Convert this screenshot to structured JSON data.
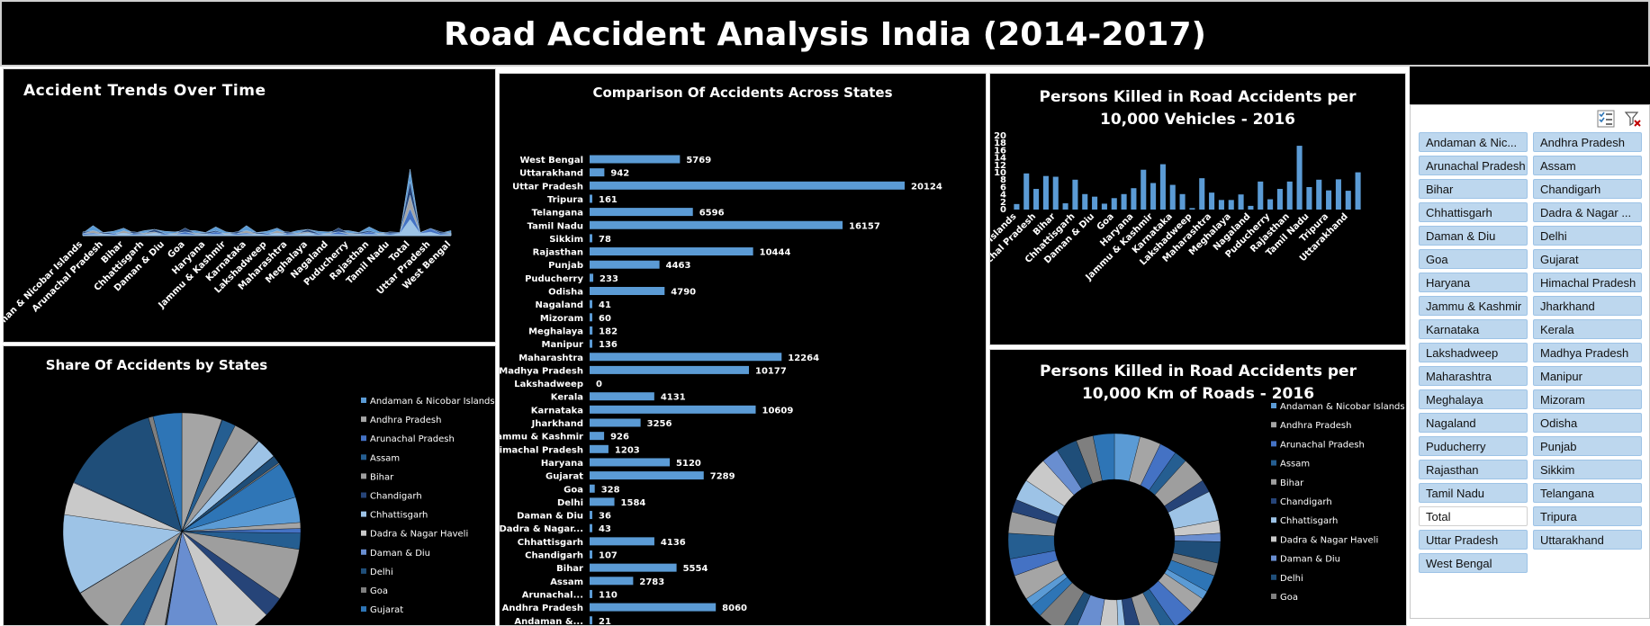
{
  "dashboard": {
    "title": "Road Accident Analysis India (2014-2017)"
  },
  "colors": {
    "background": "#000000",
    "bar": "#5b9bd5",
    "text": "#ffffff",
    "slicer_item": "#bdd7ee"
  },
  "states": [
    "Andaman & Nicobar Islands",
    "Andhra Pradesh",
    "Arunachal Pradesh",
    "Assam",
    "Bihar",
    "Chandigarh",
    "Chhattisgarh",
    "Dadra & Nagar Haveli",
    "Daman & Diu",
    "Delhi",
    "Goa",
    "Gujarat",
    "Haryana",
    "Himachal Pradesh",
    "Jammu & Kashmir",
    "Jharkhand",
    "Karnataka",
    "Kerala",
    "Lakshadweep",
    "Madhya Pradesh",
    "Maharashtra",
    "Manipur",
    "Meghalaya",
    "Mizoram",
    "Nagaland",
    "Odisha",
    "Puducherry",
    "Punjab",
    "Rajasthan",
    "Sikkim",
    "Tamil Nadu",
    "Telangana",
    "Tripura",
    "Uttar Pradesh",
    "Uttarakhand",
    "West Bengal"
  ],
  "chart_data": [
    {
      "id": "trend",
      "type": "area",
      "title": "Accident Trends Over Time",
      "categories": [
        "Andaman & Nicobar Islands",
        "Arunachal Pradesh",
        "Bihar",
        "Chhattisgarh",
        "Daman & Diu",
        "Goa",
        "Haryana",
        "Jammu & Kashmir",
        "Karnataka",
        "Lakshadweep",
        "Maharashtra",
        "Meghalaya",
        "Nagaland",
        "Puducherry",
        "Rajasthan",
        "Tamil Nadu",
        "Total",
        "Uttar Pradesh",
        "West Bengal"
      ],
      "series_colors": [
        "#5b9bd5",
        "#264478",
        "#a5a5a5",
        "#4472c4",
        "#9dc3e6"
      ],
      "peak_index": 16,
      "grid": false
    },
    {
      "id": "comparison",
      "type": "bar",
      "orientation": "horizontal",
      "title": "Comparison Of Accidents Across States",
      "categories": [
        "West Bengal",
        "Uttarakhand",
        "Uttar Pradesh",
        "Tripura",
        "Telangana",
        "Tamil Nadu",
        "Sikkim",
        "Rajasthan",
        "Punjab",
        "Puducherry",
        "Odisha",
        "Nagaland",
        "Mizoram",
        "Meghalaya",
        "Manipur",
        "Maharashtra",
        "Madhya Pradesh",
        "Lakshadweep",
        "Kerala",
        "Karnataka",
        "Jharkhand",
        "Jammu & Kashmir",
        "Himachal Pradesh",
        "Haryana",
        "Gujarat",
        "Goa",
        "Delhi",
        "Daman & Diu",
        "Dadra & Nagar...",
        "Chhattisgarh",
        "Chandigarh",
        "Bihar",
        "Assam",
        "Arunachal...",
        "Andhra Pradesh",
        "Andaman &..."
      ],
      "values": [
        5769,
        942,
        20124,
        161,
        6596,
        16157,
        78,
        10444,
        4463,
        233,
        4790,
        41,
        60,
        182,
        136,
        12264,
        10177,
        0,
        4131,
        10609,
        3256,
        926,
        1203,
        5120,
        7289,
        328,
        1584,
        36,
        43,
        4136,
        107,
        5554,
        2783,
        110,
        8060,
        21
      ],
      "grid": false
    },
    {
      "id": "killed_vehicles",
      "type": "bar",
      "title": "Persons Killed in Road Accidents per 10,000 Vehicles - 2016",
      "title_lines": [
        "Persons Killed in Road Accidents per",
        "10,000 Vehicles - 2016"
      ],
      "categories": [
        "Andaman & Nicobar Islands",
        "Andhra Pradesh",
        "Arunachal Pradesh",
        "Assam",
        "Bihar",
        "Chandigarh",
        "Chhattisgarh",
        "Dadra & Nagar Haveli",
        "Daman & Diu",
        "Delhi",
        "Goa",
        "Gujarat",
        "Haryana",
        "Himachal Pradesh",
        "Jammu & Kashmir",
        "Jharkhand",
        "Karnataka",
        "Kerala",
        "Lakshadweep",
        "Madhya Pradesh",
        "Maharashtra",
        "Manipur",
        "Meghalaya",
        "Mizoram",
        "Nagaland",
        "Odisha",
        "Puducherry",
        "Punjab",
        "Rajasthan",
        "Sikkim",
        "Tamil Nadu",
        "Telangana",
        "Tripura",
        "Uttar Pradesh",
        "Uttarakhand",
        "West Bengal"
      ],
      "x_tick_labels": [
        "Andaman & Nicobar Islands",
        "Arunachal Pradesh",
        "Bihar",
        "Chhattisgarh",
        "Daman & Diu",
        "Goa",
        "Haryana",
        "Jammu & Kashmir",
        "Karnataka",
        "Lakshadweep",
        "Maharashtra",
        "Meghalaya",
        "Nagaland",
        "Puducherry",
        "Rajasthan",
        "Tamil Nadu",
        "Tripura",
        "Uttarakhand"
      ],
      "values": [
        1.5,
        9.8,
        5.6,
        9.1,
        8.9,
        1.7,
        8.1,
        4.2,
        3.5,
        1.6,
        3.1,
        4.2,
        5.8,
        10.8,
        7.2,
        12.3,
        6.7,
        4.2,
        0.4,
        8.5,
        4.6,
        2.6,
        2.6,
        4.1,
        1.0,
        7.6,
        2.8,
        5.6,
        7.6,
        17.3,
        6.1,
        8.1,
        5.2,
        8.2,
        5.1,
        10.1
      ],
      "ylim": [
        0,
        20
      ],
      "yticks": [
        0,
        2,
        4,
        6,
        8,
        10,
        12,
        14,
        16,
        18,
        20
      ],
      "grid": false
    },
    {
      "id": "share",
      "type": "pie",
      "title": "Share Of Accidents by States",
      "legend_position": "right",
      "labels": [
        "Andaman & Nicobar Islands",
        "Andhra Pradesh",
        "Arunachal Pradesh",
        "Assam",
        "Bihar",
        "Chandigarh",
        "Chhattisgarh",
        "Dadra & Nagar Haveli",
        "Daman & Diu",
        "Delhi",
        "Goa",
        "Gujarat",
        "Haryana",
        "Himachal Pradesh",
        "Jammu & Kashmir",
        "Jharkhand",
        "Karnataka",
        "Kerala",
        "Lakshadweep",
        "Madhya Pradesh",
        "Maharashtra",
        "Manipur",
        "Meghalaya",
        "Mizoram",
        "Nagaland",
        "Odisha",
        "Puducherry",
        "Punjab",
        "Rajasthan",
        "Sikkim",
        "Tamil Nadu",
        "Telangana",
        "Tripura",
        "Uttar Pradesh",
        "Uttarakhand",
        "West Bengal"
      ],
      "legend_visible": [
        "Andaman & Nicobar Islands",
        "Andhra Pradesh",
        "Arunachal Pradesh",
        "Assam",
        "Bihar",
        "Chandigarh",
        "Chhattisgarh",
        "Dadra & Nagar Haveli",
        "Daman & Diu",
        "Delhi",
        "Goa",
        "Gujarat"
      ],
      "values": [
        21,
        8060,
        110,
        2783,
        5554,
        107,
        4136,
        43,
        36,
        1584,
        328,
        7289,
        5120,
        1203,
        926,
        3256,
        10609,
        4131,
        0,
        10177,
        12264,
        136,
        182,
        60,
        41,
        4790,
        233,
        4463,
        10444,
        78,
        16157,
        6596,
        161,
        20124,
        942,
        5769
      ],
      "colors": [
        "#5b9bd5",
        "#a5a5a5",
        "#4472c4",
        "#255e91",
        "#9e9e9e",
        "#264478",
        "#9dc3e6",
        "#c9c9c9",
        "#698ed0",
        "#1f4e79",
        "#7f7f7f",
        "#2e75b6"
      ]
    },
    {
      "id": "killed_roads",
      "type": "pie",
      "subtype": "doughnut",
      "title": "Persons Killed in Road Accidents per 10,000 Km of Roads - 2016",
      "title_lines": [
        "Persons Killed in Road Accidents per",
        "10,000 Km of Roads - 2016"
      ],
      "legend_position": "right",
      "labels": [
        "Andaman & Nicobar Islands",
        "Andhra Pradesh",
        "Arunachal Pradesh",
        "Assam",
        "Bihar",
        "Chandigarh",
        "Chhattisgarh",
        "Dadra & Nagar Haveli",
        "Daman & Diu",
        "Delhi",
        "Goa",
        "Gujarat",
        "Haryana",
        "Himachal Pradesh",
        "Jammu & Kashmir",
        "Jharkhand",
        "Karnataka",
        "Kerala",
        "Lakshadweep",
        "Madhya Pradesh",
        "Maharashtra",
        "Manipur",
        "Meghalaya",
        "Mizoram",
        "Nagaland",
        "Odisha",
        "Puducherry",
        "Punjab",
        "Rajasthan",
        "Sikkim",
        "Tamil Nadu",
        "Telangana",
        "Tripura",
        "Uttar Pradesh",
        "Uttarakhand",
        "West Bengal"
      ],
      "legend_visible": [
        "Andaman & Nicobar Islands",
        "Andhra Pradesh",
        "Arunachal Pradesh",
        "Assam",
        "Bihar",
        "Chandigarh",
        "Chhattisgarh",
        "Dadra & Nagar Haveli",
        "Daman & Diu",
        "Delhi",
        "Goa"
      ],
      "values": [
        6,
        5,
        4,
        3,
        6,
        3,
        7,
        3,
        2,
        5,
        3,
        4,
        2,
        4,
        5,
        3,
        5,
        4,
        2,
        5,
        6,
        3,
        6,
        3,
        2,
        6,
        4,
        6,
        5,
        3,
        5,
        6,
        4,
        5,
        4,
        5
      ],
      "colors": [
        "#5b9bd5",
        "#a5a5a5",
        "#4472c4",
        "#255e91",
        "#9e9e9e",
        "#264478",
        "#9dc3e6",
        "#c9c9c9",
        "#698ed0",
        "#1f4e79",
        "#7f7f7f",
        "#2e75b6"
      ]
    }
  ],
  "slicer": {
    "items": [
      "Andaman & Nic...",
      "Andhra Pradesh",
      "Arunachal Pradesh",
      "Assam",
      "Bihar",
      "Chandigarh",
      "Chhattisgarh",
      "Dadra & Nagar ...",
      "Daman & Diu",
      "Delhi",
      "Goa",
      "Gujarat",
      "Haryana",
      "Himachal Pradesh",
      "Jammu & Kashmir",
      "Jharkhand",
      "Karnataka",
      "Kerala",
      "Lakshadweep",
      "Madhya Pradesh",
      "Maharashtra",
      "Manipur",
      "Meghalaya",
      "Mizoram",
      "Nagaland",
      "Odisha",
      "Puducherry",
      "Punjab",
      "Rajasthan",
      "Sikkim",
      "Tamil Nadu",
      "Telangana",
      "Total",
      "Tripura",
      "Uttar Pradesh",
      "Uttarakhand",
      "West Bengal"
    ],
    "unselected": [
      "Total"
    ],
    "multiselect_icon": "multi-select-icon",
    "clear_filter_icon": "clear-filter-icon"
  }
}
